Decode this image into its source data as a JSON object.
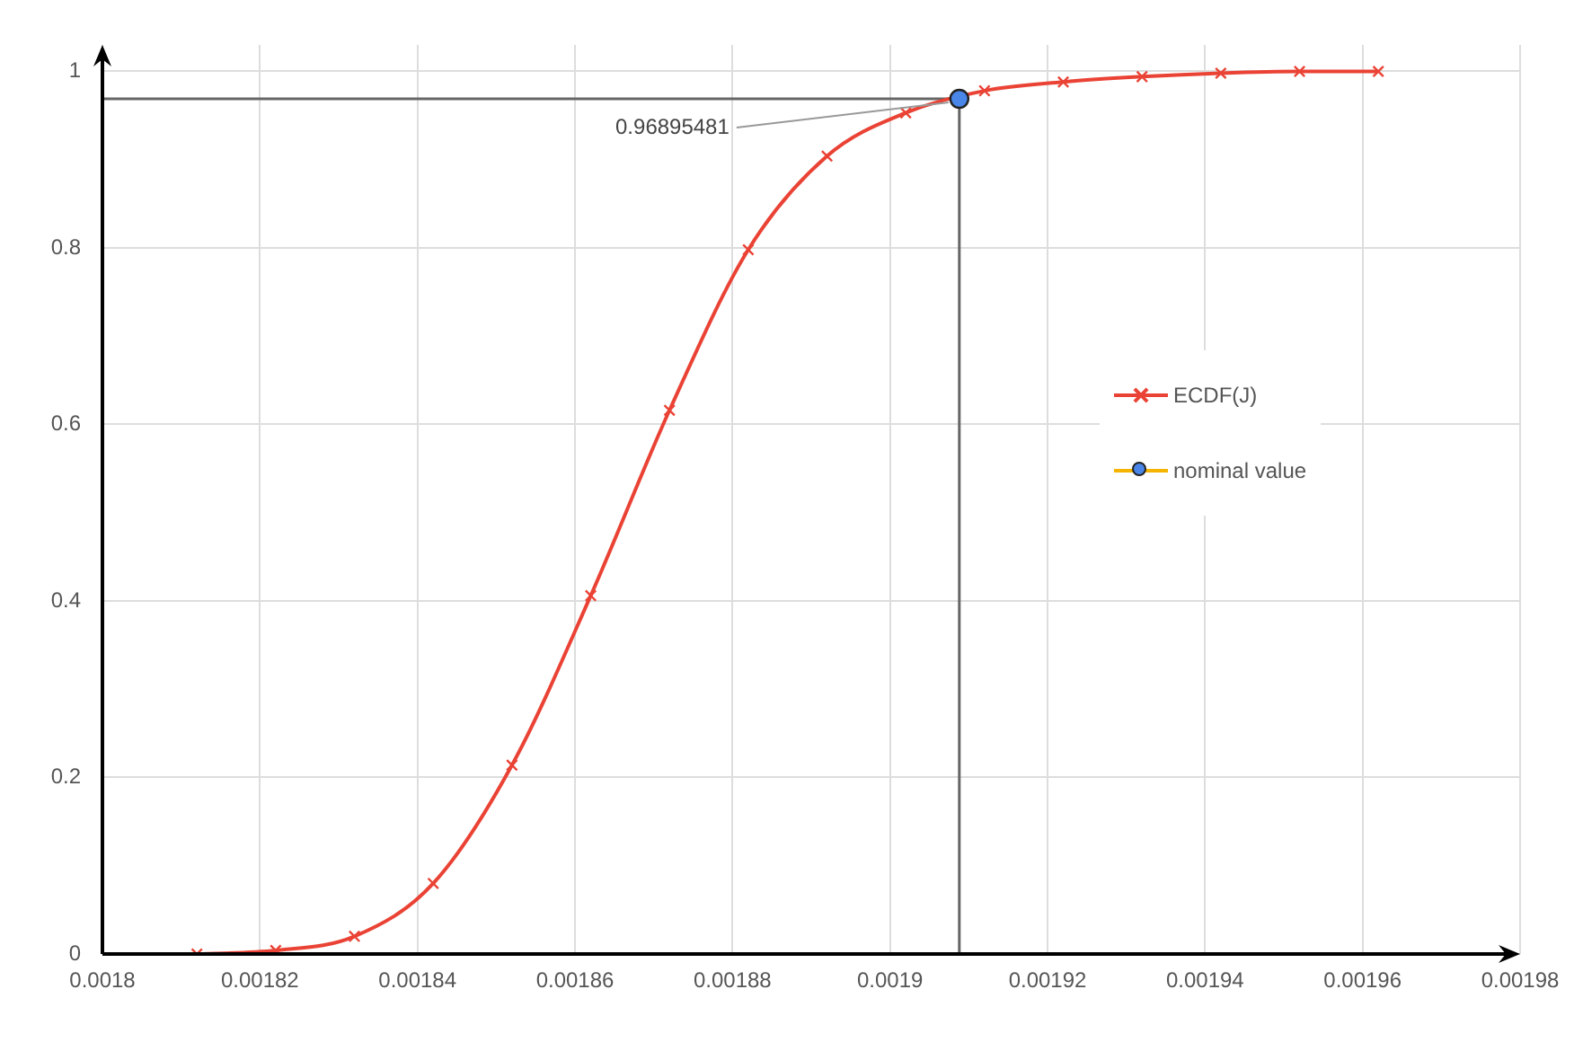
{
  "chart_data": {
    "type": "line",
    "xlim": [
      0.0018,
      0.00198
    ],
    "xticks": [
      0.0018,
      0.00182,
      0.00184,
      0.00186,
      0.00188,
      0.0019,
      0.00192,
      0.00194,
      0.00196,
      0.00198
    ],
    "ylim": [
      0,
      1.03
    ],
    "yticks": [
      0,
      0.2,
      0.4,
      0.6,
      0.8,
      1
    ],
    "grid": true,
    "legend": "right",
    "series": [
      {
        "name": "ECDF(J)",
        "color": "#ea4335",
        "marker": "cross",
        "x": [
          0.001812,
          0.001822,
          0.001832,
          0.001842,
          0.001852,
          0.001862,
          0.001872,
          0.001882,
          0.001892,
          0.001902,
          0.001912,
          0.001922,
          0.001932,
          0.001942,
          0.001952,
          0.001962
        ],
        "values": [
          0,
          0.004,
          0.02,
          0.08,
          0.214,
          0.406,
          0.616,
          0.798,
          0.904,
          0.953,
          0.978,
          0.988,
          0.994,
          0.998,
          1,
          1
        ]
      },
      {
        "name": "nominal value",
        "type": "scatter",
        "color": "#4a86e8",
        "marker": "circle",
        "x": [
          0.0019088
        ],
        "values": [
          0.96895481
        ]
      }
    ],
    "ref_lines": [
      {
        "axis": "y",
        "value": 0.96895481,
        "color": "#666666"
      },
      {
        "axis": "x",
        "value": 0.0019088,
        "color": "#666666"
      }
    ],
    "annotations": [
      {
        "text": "0.96895481",
        "x": 0.0019088,
        "y": 0.96895481
      }
    ]
  }
}
